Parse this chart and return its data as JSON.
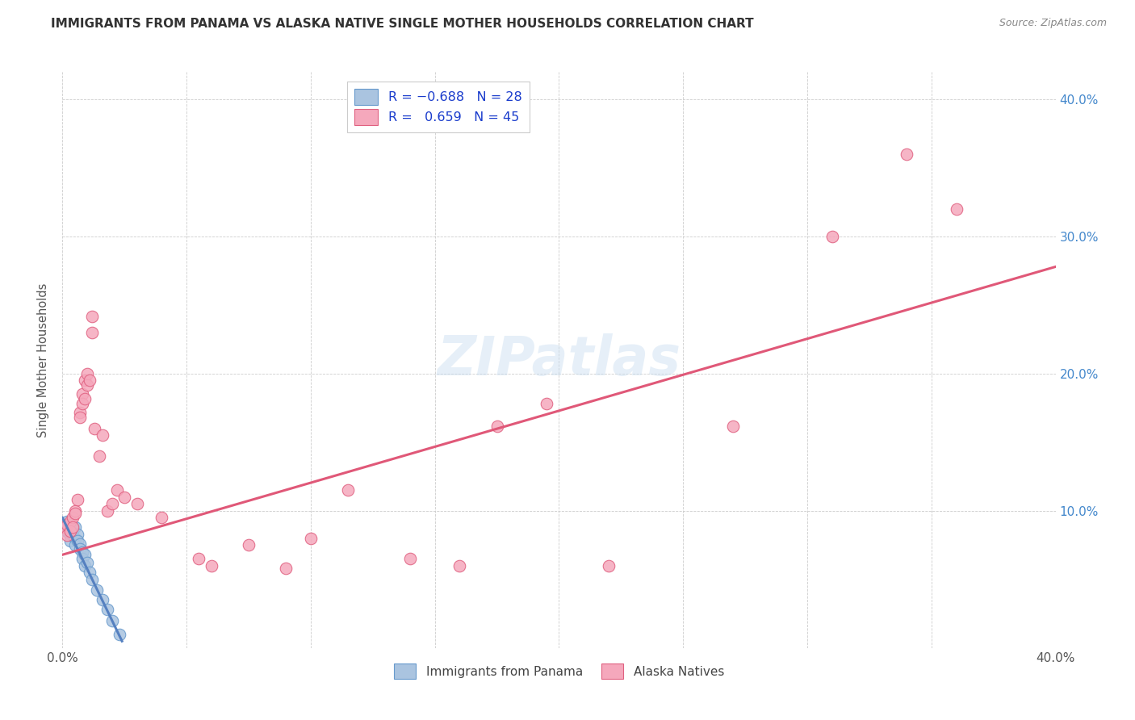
{
  "title": "IMMIGRANTS FROM PANAMA VS ALASKA NATIVE SINGLE MOTHER HOUSEHOLDS CORRELATION CHART",
  "source": "Source: ZipAtlas.com",
  "ylabel": "Single Mother Households",
  "legend_blue_label": "Immigrants from Panama",
  "legend_pink_label": "Alaska Natives",
  "watermark": "ZIPatlas",
  "blue_color": "#aac4e0",
  "pink_color": "#f5a8bc",
  "blue_edge_color": "#6699cc",
  "pink_edge_color": "#e06080",
  "blue_line_color": "#5580c0",
  "pink_line_color": "#e05878",
  "xmin": 0.0,
  "xmax": 0.4,
  "ymin": 0.0,
  "ymax": 0.42,
  "background_color": "#ffffff",
  "grid_color": "#cccccc",
  "blue_scatter": [
    [
      0.001,
      0.09
    ],
    [
      0.001,
      0.086
    ],
    [
      0.002,
      0.092
    ],
    [
      0.002,
      0.085
    ],
    [
      0.003,
      0.088
    ],
    [
      0.003,
      0.082
    ],
    [
      0.003,
      0.078
    ],
    [
      0.004,
      0.087
    ],
    [
      0.004,
      0.082
    ],
    [
      0.005,
      0.08
    ],
    [
      0.005,
      0.075
    ],
    [
      0.005,
      0.088
    ],
    [
      0.006,
      0.083
    ],
    [
      0.006,
      0.078
    ],
    [
      0.007,
      0.076
    ],
    [
      0.007,
      0.072
    ],
    [
      0.008,
      0.07
    ],
    [
      0.008,
      0.065
    ],
    [
      0.009,
      0.068
    ],
    [
      0.009,
      0.06
    ],
    [
      0.01,
      0.062
    ],
    [
      0.011,
      0.055
    ],
    [
      0.012,
      0.05
    ],
    [
      0.014,
      0.042
    ],
    [
      0.016,
      0.035
    ],
    [
      0.018,
      0.028
    ],
    [
      0.02,
      0.02
    ],
    [
      0.023,
      0.01
    ]
  ],
  "pink_scatter": [
    [
      0.001,
      0.088
    ],
    [
      0.002,
      0.09
    ],
    [
      0.002,
      0.082
    ],
    [
      0.003,
      0.092
    ],
    [
      0.003,
      0.085
    ],
    [
      0.004,
      0.095
    ],
    [
      0.004,
      0.088
    ],
    [
      0.005,
      0.1
    ],
    [
      0.005,
      0.098
    ],
    [
      0.006,
      0.108
    ],
    [
      0.007,
      0.172
    ],
    [
      0.007,
      0.168
    ],
    [
      0.008,
      0.185
    ],
    [
      0.008,
      0.178
    ],
    [
      0.009,
      0.195
    ],
    [
      0.009,
      0.182
    ],
    [
      0.01,
      0.2
    ],
    [
      0.01,
      0.192
    ],
    [
      0.011,
      0.195
    ],
    [
      0.012,
      0.23
    ],
    [
      0.012,
      0.242
    ],
    [
      0.013,
      0.16
    ],
    [
      0.015,
      0.14
    ],
    [
      0.016,
      0.155
    ],
    [
      0.018,
      0.1
    ],
    [
      0.02,
      0.105
    ],
    [
      0.022,
      0.115
    ],
    [
      0.025,
      0.11
    ],
    [
      0.03,
      0.105
    ],
    [
      0.04,
      0.095
    ],
    [
      0.055,
      0.065
    ],
    [
      0.06,
      0.06
    ],
    [
      0.075,
      0.075
    ],
    [
      0.09,
      0.058
    ],
    [
      0.1,
      0.08
    ],
    [
      0.115,
      0.115
    ],
    [
      0.14,
      0.065
    ],
    [
      0.16,
      0.06
    ],
    [
      0.175,
      0.162
    ],
    [
      0.195,
      0.178
    ],
    [
      0.22,
      0.06
    ],
    [
      0.27,
      0.162
    ],
    [
      0.31,
      0.3
    ],
    [
      0.34,
      0.36
    ],
    [
      0.36,
      0.32
    ]
  ],
  "blue_trendline_x": [
    0.0,
    0.024
  ],
  "blue_trendline_y": [
    0.095,
    0.005
  ],
  "pink_trendline_x": [
    0.0,
    0.4
  ],
  "pink_trendline_y": [
    0.068,
    0.278
  ]
}
